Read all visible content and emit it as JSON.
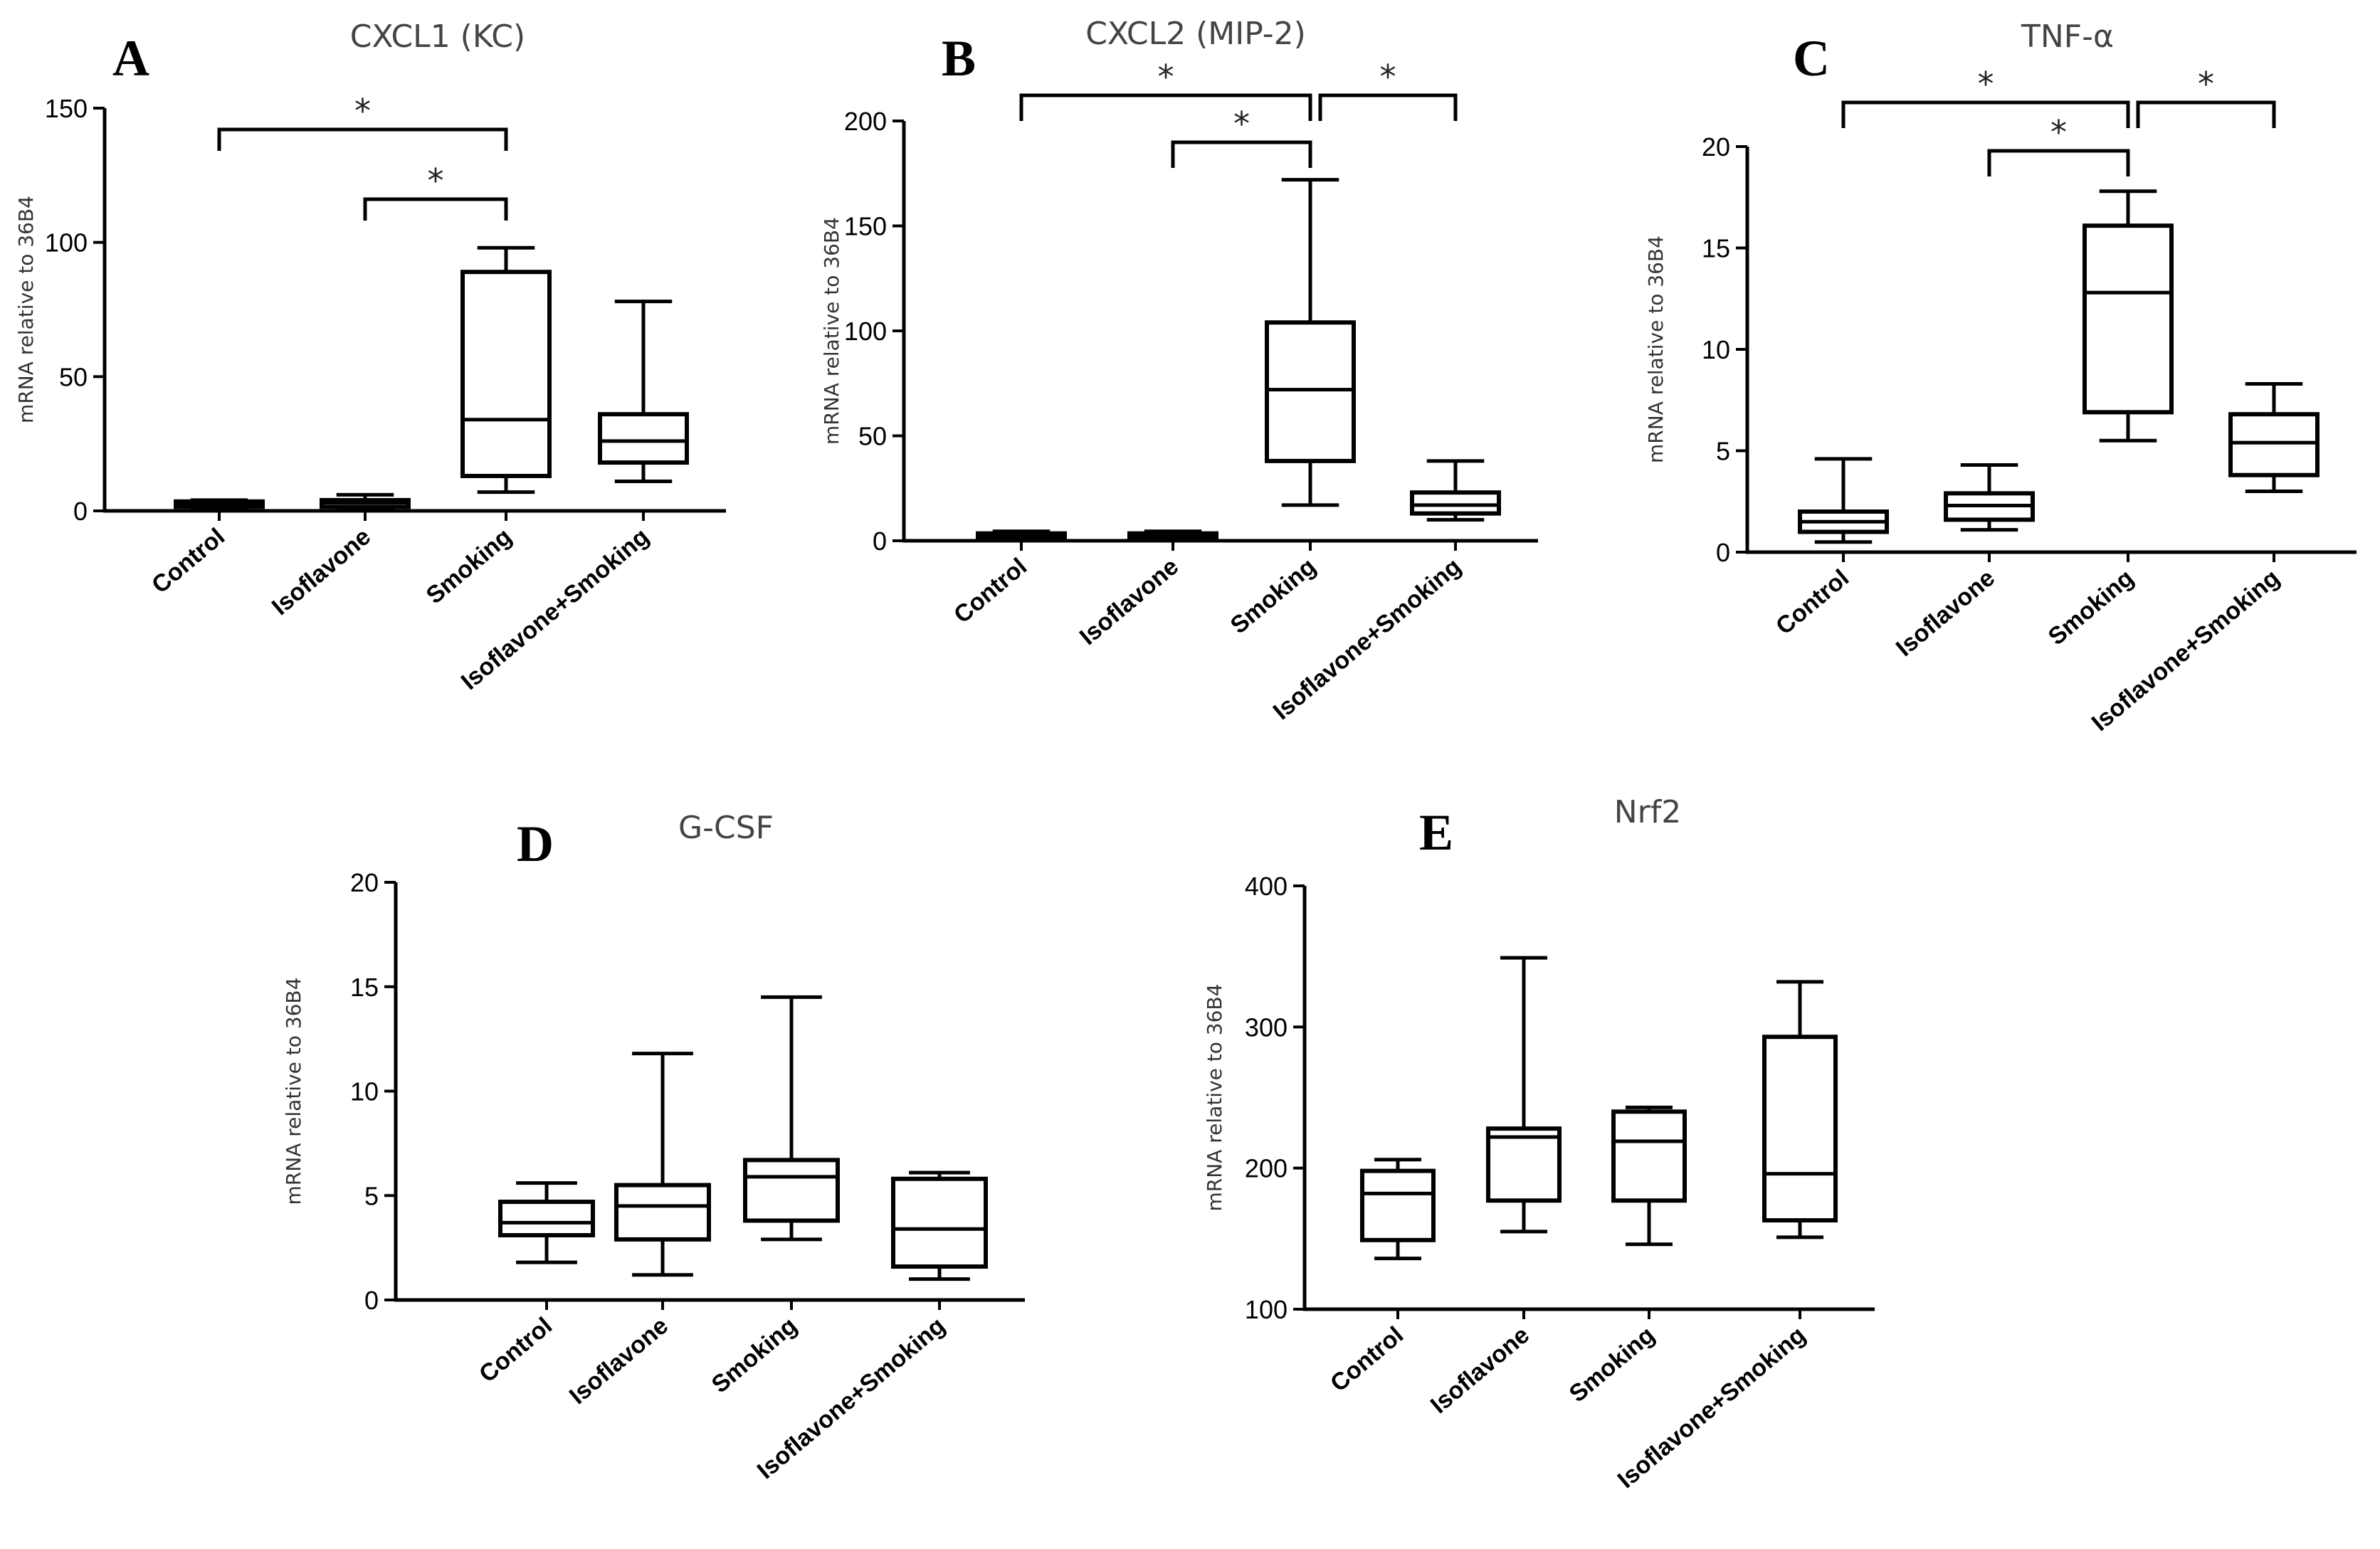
{
  "chart_data": [
    {
      "type": "box",
      "panel": "A",
      "title": "CXCL1 (KC)",
      "ylabel": "mRNA relative to  36B4",
      "categories": [
        "Control",
        "Isoflavone",
        "Smoking",
        "Isoflavone+Smoking"
      ],
      "ylim": [
        0,
        150
      ],
      "yticks": [
        0,
        50,
        100,
        150
      ],
      "boxes": [
        {
          "min": 1,
          "q1": 1.5,
          "median": 2.5,
          "q3": 3.5,
          "max": 4
        },
        {
          "min": 1,
          "q1": 1.5,
          "median": 3,
          "q3": 4,
          "max": 6
        },
        {
          "min": 7,
          "q1": 13,
          "median": 34,
          "q3": 89,
          "max": 98
        },
        {
          "min": 11,
          "q1": 18,
          "median": 26,
          "q3": 36,
          "max": 78
        }
      ],
      "significance": [
        {
          "from": 0,
          "to": 2,
          "label": "*"
        },
        {
          "from": 1,
          "to": 2,
          "label": "*"
        }
      ]
    },
    {
      "type": "box",
      "panel": "B",
      "title": "CXCL2 (MIP-2)",
      "ylabel": "mRNA relative to  36B4",
      "categories": [
        "Control",
        "Isoflavone",
        "Smoking",
        "Isoflavone+Smoking"
      ],
      "ylim": [
        0,
        200
      ],
      "yticks": [
        0,
        50,
        100,
        150,
        200
      ],
      "boxes": [
        {
          "min": 1,
          "q1": 1.5,
          "median": 2.5,
          "q3": 3.5,
          "max": 4.5
        },
        {
          "min": 1,
          "q1": 1.5,
          "median": 2.5,
          "q3": 3.5,
          "max": 4.5
        },
        {
          "min": 17,
          "q1": 38,
          "median": 72,
          "q3": 104,
          "max": 172
        },
        {
          "min": 10,
          "q1": 13,
          "median": 17,
          "q3": 23,
          "max": 38
        }
      ],
      "significance": [
        {
          "from": 0,
          "to": 2,
          "label": "*"
        },
        {
          "from": 1,
          "to": 2,
          "label": "*"
        },
        {
          "from": 2,
          "to": 3,
          "label": "*"
        }
      ]
    },
    {
      "type": "box",
      "panel": "C",
      "title": "TNF-α",
      "ylabel": "mRNA relative to  36B4",
      "categories": [
        "Control",
        "Isoflavone",
        "Smoking",
        "Isoflavone+Smoking"
      ],
      "ylim": [
        0,
        20
      ],
      "yticks": [
        0,
        5,
        10,
        15,
        20
      ],
      "boxes": [
        {
          "min": 0.5,
          "q1": 1.0,
          "median": 1.5,
          "q3": 2.0,
          "max": 4.6
        },
        {
          "min": 1.1,
          "q1": 1.6,
          "median": 2.3,
          "q3": 2.9,
          "max": 4.3
        },
        {
          "min": 5.5,
          "q1": 6.9,
          "median": 12.8,
          "q3": 16.1,
          "max": 17.8
        },
        {
          "min": 3.0,
          "q1": 3.8,
          "median": 5.4,
          "q3": 6.8,
          "max": 8.3
        }
      ],
      "significance": [
        {
          "from": 0,
          "to": 2,
          "label": "*"
        },
        {
          "from": 1,
          "to": 2,
          "label": "*"
        },
        {
          "from": 2,
          "to": 3,
          "label": "*"
        }
      ]
    },
    {
      "type": "box",
      "panel": "D",
      "title": "G-CSF",
      "ylabel": "mRNA relative to  36B4",
      "categories": [
        "Control",
        "Isoflavone",
        "Smoking",
        "Isoflavone+Smoking"
      ],
      "ylim": [
        0,
        20
      ],
      "yticks": [
        0,
        5,
        10,
        15,
        20
      ],
      "boxes": [
        {
          "min": 1.8,
          "q1": 3.1,
          "median": 3.7,
          "q3": 4.7,
          "max": 5.6
        },
        {
          "min": 1.2,
          "q1": 2.9,
          "median": 4.5,
          "q3": 5.5,
          "max": 11.8
        },
        {
          "min": 2.9,
          "q1": 3.8,
          "median": 5.9,
          "q3": 6.7,
          "max": 14.5
        },
        {
          "min": 1.0,
          "q1": 1.6,
          "median": 3.4,
          "q3": 5.8,
          "max": 6.1
        }
      ],
      "significance": []
    },
    {
      "type": "box",
      "panel": "E",
      "title": "Nrf2",
      "ylabel": "mRNA relative to  36B4",
      "categories": [
        "Control",
        "Isoflavone",
        "Smoking",
        "Isoflavone+Smoking"
      ],
      "ylim": [
        100,
        400
      ],
      "yticks": [
        100,
        200,
        300,
        400
      ],
      "boxes": [
        {
          "min": 136,
          "q1": 149,
          "median": 182,
          "q3": 198,
          "max": 206
        },
        {
          "min": 155,
          "q1": 177,
          "median": 222,
          "q3": 228,
          "max": 349
        },
        {
          "min": 146,
          "q1": 177,
          "median": 219,
          "q3": 240,
          "max": 243
        },
        {
          "min": 151,
          "q1": 163,
          "median": 196,
          "q3": 293,
          "max": 332
        }
      ],
      "significance": []
    }
  ]
}
